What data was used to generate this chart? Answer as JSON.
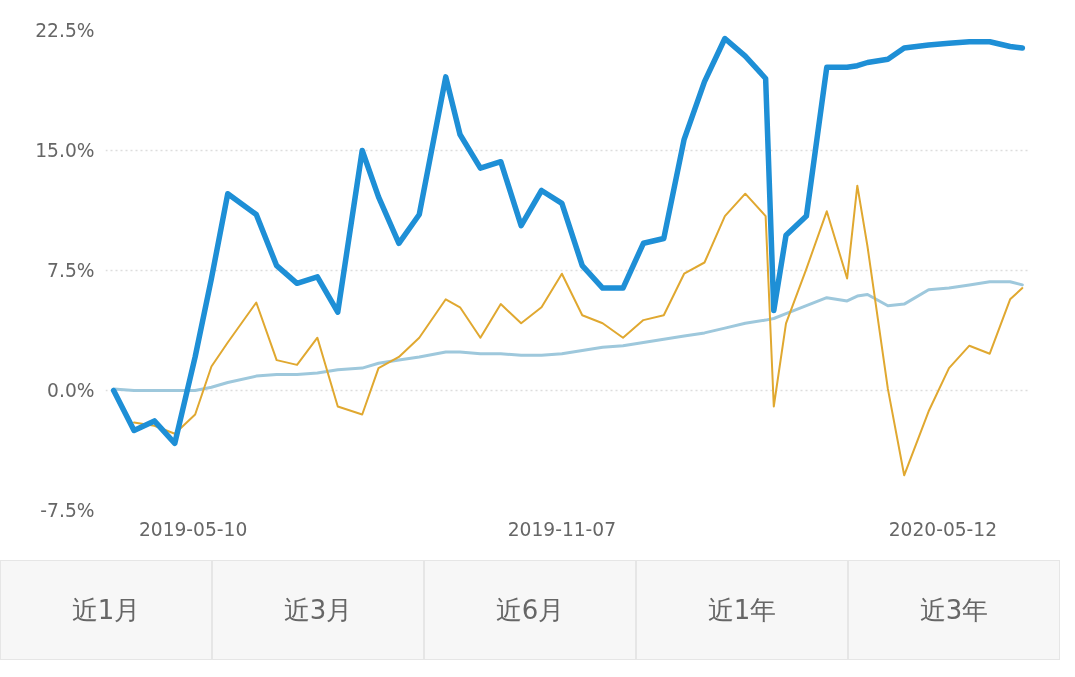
{
  "chart_data": {
    "type": "line",
    "x": [
      "2019-04-01",
      "2019-04-11",
      "2019-04-21",
      "2019-05-01",
      "2019-05-11",
      "2019-05-19",
      "2019-05-27",
      "2019-06-10",
      "2019-06-20",
      "2019-06-30",
      "2019-07-10",
      "2019-07-20",
      "2019-08-01",
      "2019-08-09",
      "2019-08-19",
      "2019-08-29",
      "2019-09-11",
      "2019-09-18",
      "2019-09-28",
      "2019-10-08",
      "2019-10-18",
      "2019-10-28",
      "2019-11-07",
      "2019-11-17",
      "2019-11-27",
      "2019-12-07",
      "2019-12-17",
      "2019-12-27",
      "2020-01-06",
      "2020-01-16",
      "2020-01-26",
      "2020-02-05",
      "2020-02-15",
      "2020-02-19",
      "2020-02-25",
      "2020-03-06",
      "2020-03-16",
      "2020-03-26",
      "2020-03-31",
      "2020-04-05",
      "2020-04-15",
      "2020-04-23",
      "2020-05-05",
      "2020-05-15",
      "2020-05-25",
      "2020-06-04",
      "2020-06-14",
      "2020-06-20"
    ],
    "series": [
      {
        "color": "#9ec8dc",
        "values": [
          0.1,
          0.0,
          0.0,
          0.0,
          0.0,
          0.2,
          0.5,
          0.9,
          1.0,
          1.0,
          1.1,
          1.3,
          1.4,
          1.7,
          1.9,
          2.1,
          2.4,
          2.4,
          2.3,
          2.3,
          2.2,
          2.2,
          2.3,
          2.5,
          2.7,
          2.8,
          3.0,
          3.2,
          3.4,
          3.6,
          3.9,
          4.2,
          4.4,
          4.5,
          4.8,
          5.3,
          5.8,
          5.6,
          5.9,
          6.0,
          5.3,
          5.4,
          6.3,
          6.4,
          6.6,
          6.8,
          6.8,
          6.6
        ]
      },
      {
        "color": "#e0a830",
        "values": [
          null,
          -2.0,
          -2.2,
          -2.7,
          -1.5,
          1.5,
          3.0,
          5.5,
          1.9,
          1.6,
          3.3,
          -1.0,
          -1.5,
          1.4,
          2.1,
          3.3,
          5.7,
          5.2,
          3.3,
          5.4,
          4.2,
          5.2,
          7.3,
          4.7,
          4.2,
          3.3,
          4.4,
          4.7,
          7.3,
          8.0,
          10.9,
          12.3,
          10.9,
          -1.0,
          4.2,
          7.6,
          11.2,
          7.0,
          12.8,
          9.0,
          0.1,
          -5.3,
          -1.3,
          1.4,
          2.8,
          2.3,
          5.7,
          6.4
        ]
      },
      {
        "color": "#1e8fd6",
        "values": [
          0,
          -2.5,
          -1.9,
          -3.3,
          2.1,
          7.0,
          12.3,
          11.0,
          7.8,
          6.7,
          7.1,
          4.9,
          15.0,
          12.1,
          9.2,
          11.0,
          19.6,
          16.0,
          13.9,
          14.3,
          10.3,
          12.5,
          11.7,
          7.8,
          6.4,
          6.4,
          9.2,
          9.5,
          15.7,
          19.3,
          22.0,
          20.9,
          19.5,
          5.0,
          9.7,
          10.9,
          20.2,
          20.2,
          20.3,
          20.5,
          20.7,
          21.4,
          21.6,
          21.7,
          21.8,
          21.8,
          21.5,
          21.4
        ]
      }
    ],
    "xlim": [
      "2019-03-28",
      "2020-06-24"
    ],
    "xticks": [
      "2019-05-10",
      "2019-11-07",
      "2020-05-12"
    ],
    "ylim": [
      -7.5,
      22.5
    ],
    "yticks": [
      {
        "value": -7.5,
        "label": "-7.5%"
      },
      {
        "value": 0,
        "label": "0.0%"
      },
      {
        "value": 7.5,
        "label": "7.5%"
      },
      {
        "value": 15,
        "label": "15.0%"
      },
      {
        "value": 22.5,
        "label": "22.5%"
      }
    ],
    "grid": "y",
    "line_style": "solid",
    "annotations": [
      "近1月",
      "近3月",
      "近6月",
      "近1年",
      "近3年"
    ]
  }
}
